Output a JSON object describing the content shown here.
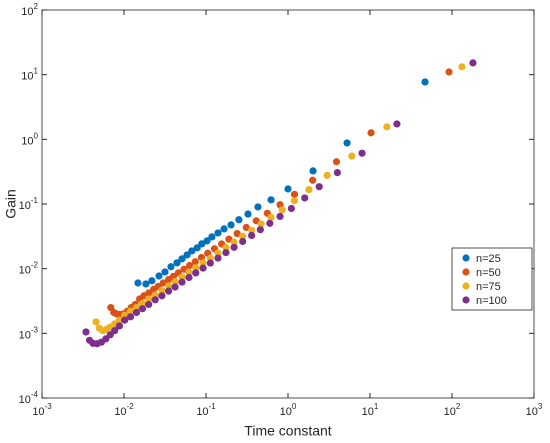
{
  "chart_data": {
    "type": "scatter",
    "xlabel": "Time constant",
    "ylabel": "Gain",
    "xscale": "log",
    "yscale": "log",
    "xlim": [
      0.001,
      1000
    ],
    "ylim": [
      0.0001,
      100
    ],
    "xticks": [
      {
        "value": 0.001,
        "label": "10",
        "exponent": "-3"
      },
      {
        "value": 0.01,
        "label": "10",
        "exponent": "-2"
      },
      {
        "value": 0.1,
        "label": "10",
        "exponent": "-1"
      },
      {
        "value": 1,
        "label": "10",
        "exponent": "0"
      },
      {
        "value": 10,
        "label": "10",
        "exponent": "1"
      },
      {
        "value": 100,
        "label": "10",
        "exponent": "2"
      },
      {
        "value": 1000,
        "label": "10",
        "exponent": "3"
      }
    ],
    "yticks": [
      {
        "value": 0.0001,
        "label": "10",
        "exponent": "-4"
      },
      {
        "value": 0.001,
        "label": "10",
        "exponent": "-3"
      },
      {
        "value": 0.01,
        "label": "10",
        "exponent": "-2"
      },
      {
        "value": 0.1,
        "label": "10",
        "exponent": "-1"
      },
      {
        "value": 1,
        "label": "10",
        "exponent": "0"
      },
      {
        "value": 10,
        "label": "10",
        "exponent": "1"
      },
      {
        "value": 100,
        "label": "10",
        "exponent": "2"
      }
    ],
    "legend": "right",
    "series": [
      {
        "name": "n=25",
        "color": "#0072bd",
        "x": [
          46.9,
          5.25,
          2.02,
          1.0,
          0.621,
          0.43,
          0.325,
          0.252,
          0.202,
          0.166,
          0.14,
          0.118,
          0.103,
          0.089,
          0.078,
          0.067,
          0.0587,
          0.051,
          0.0443,
          0.0374,
          0.0316,
          0.0267,
          0.0219,
          0.0185,
          0.0148
        ],
        "values": [
          7.71,
          0.88,
          0.325,
          0.171,
          0.116,
          0.09,
          0.07,
          0.057,
          0.0475,
          0.0412,
          0.0357,
          0.031,
          0.0269,
          0.0242,
          0.021,
          0.0188,
          0.0163,
          0.0142,
          0.0123,
          0.0107,
          0.0089,
          0.0077,
          0.0065,
          0.0058,
          0.006
        ]
      },
      {
        "name": "n=50",
        "color": "#d95319",
        "x": [
          92,
          10.3,
          3.9,
          2.0,
          1.2,
          0.8,
          0.56,
          0.41,
          0.31,
          0.24,
          0.19,
          0.155,
          0.127,
          0.105,
          0.088,
          0.074,
          0.063,
          0.054,
          0.046,
          0.04,
          0.035,
          0.03,
          0.026,
          0.023,
          0.02,
          0.0175,
          0.0155,
          0.0137,
          0.0122,
          0.011,
          0.0099,
          0.0089,
          0.0081,
          0.0075,
          0.0069
        ],
        "values": [
          11.0,
          1.26,
          0.45,
          0.233,
          0.141,
          0.0973,
          0.0718,
          0.0551,
          0.0434,
          0.0349,
          0.0286,
          0.0241,
          0.0203,
          0.0173,
          0.0149,
          0.0128,
          0.0112,
          0.0098,
          0.0086,
          0.0076,
          0.0068,
          0.006,
          0.0053,
          0.0048,
          0.0042,
          0.0038,
          0.0034,
          0.0028,
          0.0025,
          0.0022,
          0.002,
          0.00197,
          0.002,
          0.0021,
          0.0025
        ]
      },
      {
        "name": "n=75",
        "color": "#edb120",
        "x": [
          132,
          16.1,
          6.0,
          3.0,
          1.8,
          1.2,
          0.85,
          0.62,
          0.47,
          0.36,
          0.28,
          0.22,
          0.175,
          0.14,
          0.113,
          0.092,
          0.075,
          0.062,
          0.051,
          0.042,
          0.035,
          0.029,
          0.024,
          0.02,
          0.0168,
          0.0142,
          0.012,
          0.0102,
          0.0088,
          0.0077,
          0.0068,
          0.0061,
          0.0055,
          0.005,
          0.00456
        ],
        "values": [
          13.2,
          1.56,
          0.55,
          0.277,
          0.167,
          0.112,
          0.0813,
          0.0621,
          0.0491,
          0.0392,
          0.0316,
          0.0258,
          0.0212,
          0.0175,
          0.0146,
          0.0123,
          0.0103,
          0.0088,
          0.0074,
          0.0063,
          0.0054,
          0.0046,
          0.0039,
          0.0034,
          0.0029,
          0.0025,
          0.0022,
          0.0019,
          0.0016,
          0.0014,
          0.00125,
          0.00115,
          0.0011,
          0.0012,
          0.0015
        ]
      },
      {
        "name": "n=100",
        "color": "#7e2f8e",
        "x": [
          180,
          21.3,
          8.0,
          4.0,
          2.4,
          1.6,
          1.1,
          0.8,
          0.6,
          0.46,
          0.36,
          0.28,
          0.22,
          0.175,
          0.14,
          0.113,
          0.092,
          0.075,
          0.062,
          0.051,
          0.042,
          0.035,
          0.029,
          0.024,
          0.02,
          0.0168,
          0.0142,
          0.012,
          0.0102,
          0.0088,
          0.0077,
          0.0068,
          0.006,
          0.0053,
          0.0047,
          0.0042,
          0.0038,
          0.00344
        ],
        "values": [
          15.2,
          1.73,
          0.61,
          0.306,
          0.185,
          0.124,
          0.0853,
          0.0643,
          0.0503,
          0.0401,
          0.0326,
          0.0263,
          0.0214,
          0.0177,
          0.0146,
          0.0122,
          0.0102,
          0.0086,
          0.0073,
          0.0062,
          0.0052,
          0.0045,
          0.0038,
          0.0033,
          0.0028,
          0.0024,
          0.0021,
          0.0018,
          0.0016,
          0.0013,
          0.0011,
          0.00095,
          0.00082,
          0.00073,
          0.00069,
          0.0007,
          0.00078,
          0.00105
        ]
      }
    ]
  }
}
